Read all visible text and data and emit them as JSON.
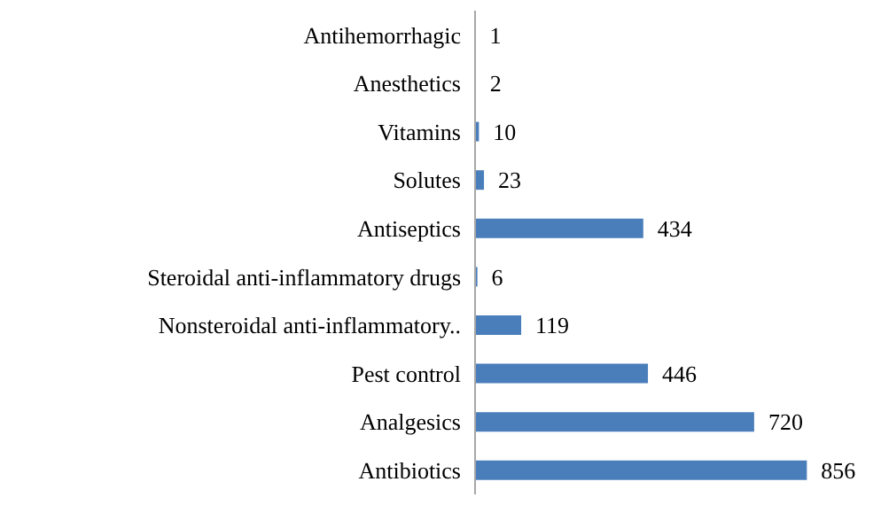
{
  "chart_data": {
    "type": "bar",
    "orientation": "horizontal",
    "categories": [
      "Antihemorrhagic",
      "Anesthetics",
      "Vitamins",
      "Solutes",
      "Antiseptics",
      "Steroidal anti-inflammatory drugs",
      "Nonsteroidal anti-inflammatory..",
      "Pest control",
      "Analgesics",
      "Antibiotics"
    ],
    "values": [
      1,
      2,
      10,
      23,
      434,
      6,
      119,
      446,
      720,
      856
    ],
    "color": "#4a7ebb",
    "data_labels": true,
    "grid": false,
    "legend": false
  }
}
